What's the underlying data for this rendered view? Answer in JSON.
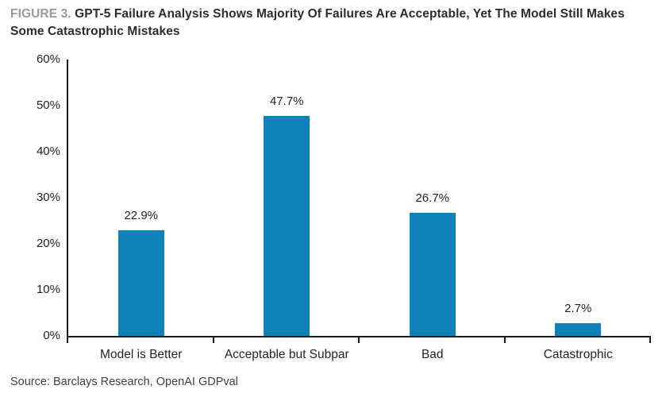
{
  "figure": {
    "label": "FIGURE 3.",
    "title": "GPT-5 Failure Analysis Shows Majority Of Failures Are Acceptable, Yet The Model Still Makes Some Catastrophic Mistakes"
  },
  "source": "Source: Barclays Research, OpenAI GDPval",
  "colors": {
    "bar": "#0e81b9",
    "axis": "#1c1c1c",
    "figure_label_gray": "#97999b",
    "title_text": "#2b2b2b"
  },
  "chart_data": {
    "type": "bar",
    "categories": [
      "Model is Better",
      "Acceptable but Subpar",
      "Bad",
      "Catastrophic"
    ],
    "values": [
      22.9,
      47.7,
      26.7,
      2.7
    ],
    "value_labels": [
      "22.9%",
      "47.7%",
      "26.7%",
      "2.7%"
    ],
    "title": "GPT-5 Failure Analysis Shows Majority Of Failures Are Acceptable, Yet The Model Still Makes Some Catastrophic Mistakes",
    "xlabel": "",
    "ylabel": "",
    "ylim": [
      0,
      60
    ],
    "ytick_step": 10,
    "ytick_labels": [
      "0%",
      "10%",
      "20%",
      "30%",
      "40%",
      "50%",
      "60%"
    ],
    "grid": false,
    "legend": "none",
    "bar_color": "#0e81b9"
  }
}
